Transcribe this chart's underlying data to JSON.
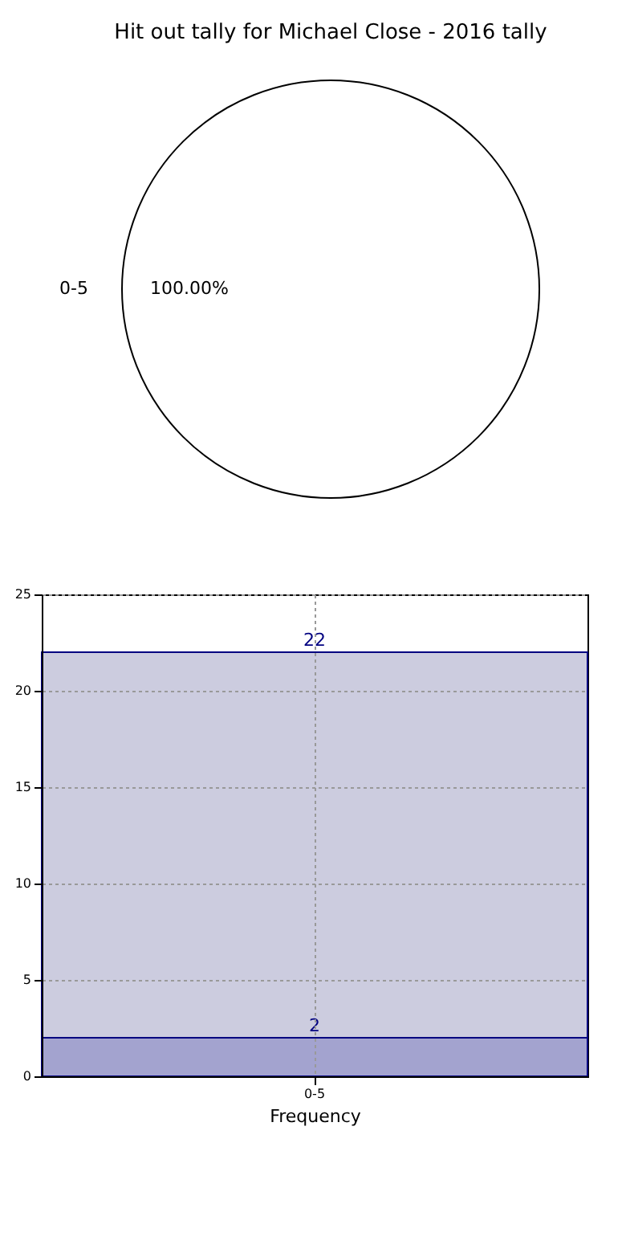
{
  "chart_data": [
    {
      "type": "pie",
      "title": "Hit out tally for Michael Close - 2016 tally",
      "categories": [
        "0-5"
      ],
      "values": [
        100
      ],
      "colors": [
        "#ffffff"
      ],
      "value_labels": [
        "100.00%"
      ],
      "legend": false
    },
    {
      "type": "bar",
      "xlabel": "Frequency",
      "categories": [
        "0-5"
      ],
      "stacked": true,
      "series": [
        {
          "color": "#a3a3cf",
          "values": [
            2
          ],
          "value_labels": [
            "2"
          ]
        },
        {
          "color": "#ccccdf",
          "values": [
            20
          ]
        }
      ],
      "totals": [
        "22"
      ],
      "ylim": [
        0,
        25
      ],
      "yticks": [
        0,
        5,
        10,
        15,
        20,
        25
      ],
      "grid": true
    }
  ]
}
